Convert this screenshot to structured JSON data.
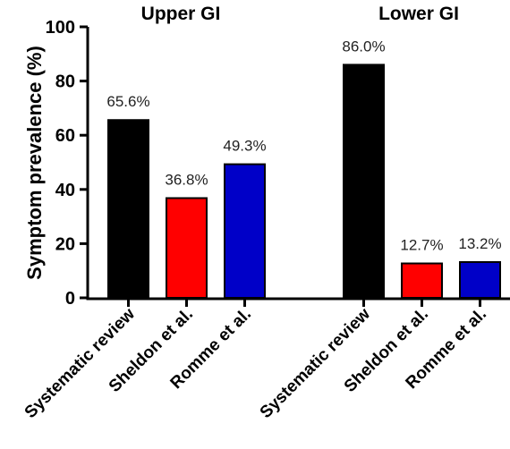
{
  "chart_data": {
    "type": "bar",
    "ylabel": "Symptom prevalence (%)",
    "ylim": [
      0,
      100
    ],
    "yticks": [
      "0",
      "20",
      "40",
      "60",
      "80",
      "100"
    ],
    "grid": false,
    "groups": [
      {
        "title": "Upper GI",
        "categories": [
          "Systematic review",
          "Sheldon et al.",
          "Romme et al."
        ],
        "values": [
          65.6,
          36.8,
          49.3
        ],
        "labels": [
          "65.6%",
          "36.8%",
          "49.3%"
        ]
      },
      {
        "title": "Lower GI",
        "categories": [
          "Systematic review",
          "Sheldon et al.",
          "Romme et al."
        ],
        "values": [
          86.0,
          12.7,
          13.2
        ],
        "labels": [
          "86.0%",
          "12.7%",
          "13.2%"
        ]
      }
    ],
    "colors": [
      "#000000",
      "#ff0000",
      "#0000c8"
    ]
  }
}
